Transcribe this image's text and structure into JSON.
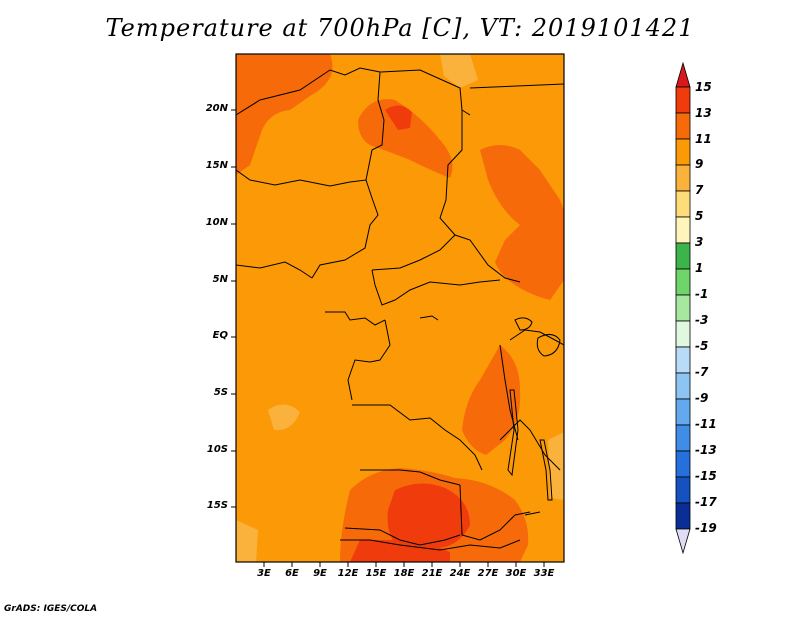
{
  "title": "Temperature at 700hPa [C], VT: 2019101421",
  "map": {
    "variable": "Temperature at 700hPa",
    "units": "C",
    "valid_time": "2019101421",
    "lat_labels": [
      "20N",
      "15N",
      "10N",
      "5N",
      "EQ",
      "5S",
      "10S",
      "15S"
    ],
    "lon_labels": [
      "3E",
      "6E",
      "9E",
      "12E",
      "15E",
      "18E",
      "21E",
      "24E",
      "27E",
      "30E",
      "33E"
    ]
  },
  "colorbar": {
    "labels": [
      "15",
      "13",
      "11",
      "9",
      "7",
      "5",
      "3",
      "1",
      "-1",
      "-3",
      "-5",
      "-7",
      "-9",
      "-11",
      "-13",
      "-15",
      "-17",
      "-19"
    ],
    "colors": {
      "above_15": "#d7191c",
      "13_15": "#f03b0c",
      "11_13": "#f76a0a",
      "9_11": "#fb9a06",
      "7_9": "#fbb23c",
      "5_7": "#fddc7a",
      "3_5": "#fff5bc",
      "1_3": "#3cb44a",
      "-1_1": "#6fd46a",
      "-3_-1": "#a6e8a0",
      "-5_-3": "#e0f8e0",
      "-7_-5": "#b8dcf8",
      "-9_-7": "#8cc4f4",
      "-11_-9": "#64a8ee",
      "-13_-11": "#3f8de6",
      "-15_-13": "#2670dd",
      "-17_-15": "#1552c0",
      "-19_-17": "#0a2e96",
      "below_-19": "#e0dcf4"
    }
  },
  "credit": "GrADS: IGES/COLA"
}
